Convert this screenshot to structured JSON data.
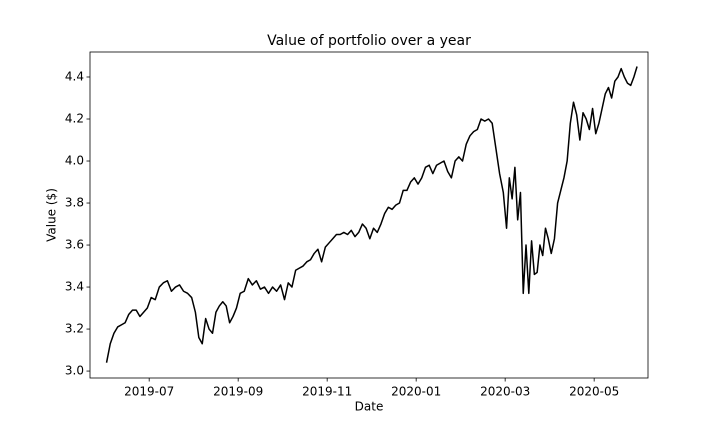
{
  "chart_data": {
    "type": "line",
    "title": "Value of portfolio over a year",
    "xlabel": "Date",
    "ylabel": "Value ($)",
    "color": "#000000",
    "x": [
      "2019-06",
      "2019-06",
      "2019-06",
      "2019-06",
      "2019-06",
      "2019-06",
      "2019-06",
      "2019-06",
      "2019-06",
      "2019-06",
      "2019-06",
      "2019-06",
      "2019-07",
      "2019-07",
      "2019-07",
      "2019-07",
      "2019-07",
      "2019-07",
      "2019-07",
      "2019-07",
      "2019-07",
      "2019-07",
      "2019-07",
      "2019-08",
      "2019-08",
      "2019-08",
      "2019-08",
      "2019-08",
      "2019-08",
      "2019-08",
      "2019-08",
      "2019-08",
      "2019-08",
      "2019-08",
      "2019-08",
      "2019-08",
      "2019-09",
      "2019-09",
      "2019-09",
      "2019-09",
      "2019-09",
      "2019-09",
      "2019-09",
      "2019-09",
      "2019-09",
      "2019-09",
      "2019-09",
      "2019-10",
      "2019-10",
      "2019-10",
      "2019-10",
      "2019-10",
      "2019-10",
      "2019-10",
      "2019-10",
      "2019-10",
      "2019-10",
      "2019-10",
      "2019-10",
      "2019-11",
      "2019-11",
      "2019-11",
      "2019-11",
      "2019-11",
      "2019-11",
      "2019-11",
      "2019-11",
      "2019-11",
      "2019-11",
      "2019-11",
      "2019-11",
      "2019-12",
      "2019-12",
      "2019-12",
      "2019-12",
      "2019-12",
      "2019-12",
      "2019-12",
      "2019-12",
      "2019-12",
      "2019-12",
      "2019-12",
      "2019-12",
      "2020-01",
      "2020-01",
      "2020-01",
      "2020-01",
      "2020-01",
      "2020-01",
      "2020-01",
      "2020-01",
      "2020-01",
      "2020-01",
      "2020-01",
      "2020-01",
      "2020-02",
      "2020-02",
      "2020-02",
      "2020-02",
      "2020-02",
      "2020-02",
      "2020-02",
      "2020-02",
      "2020-02",
      "2020-02",
      "2020-02",
      "2020-02",
      "2020-03",
      "2020-03",
      "2020-03",
      "2020-03",
      "2020-03",
      "2020-03",
      "2020-03",
      "2020-03",
      "2020-03",
      "2020-03",
      "2020-03",
      "2020-03",
      "2020-03",
      "2020-03",
      "2020-03",
      "2020-03",
      "2020-04",
      "2020-04",
      "2020-04",
      "2020-04",
      "2020-04",
      "2020-04",
      "2020-04",
      "2020-04",
      "2020-04",
      "2020-04",
      "2020-04",
      "2020-04",
      "2020-04",
      "2020-04",
      "2020-05",
      "2020-05",
      "2020-05",
      "2020-05",
      "2020-05",
      "2020-05",
      "2020-05",
      "2020-05",
      "2020-05",
      "2020-05",
      "2020-05",
      "2020-05",
      "2020-05",
      "2020-05"
    ],
    "values": [
      3.04,
      3.13,
      3.18,
      3.21,
      3.22,
      3.23,
      3.27,
      3.29,
      3.29,
      3.26,
      3.28,
      3.3,
      3.35,
      3.34,
      3.4,
      3.42,
      3.43,
      3.38,
      3.4,
      3.41,
      3.38,
      3.37,
      3.35,
      3.28,
      3.16,
      3.13,
      3.25,
      3.2,
      3.18,
      3.28,
      3.31,
      3.33,
      3.31,
      3.23,
      3.26,
      3.3,
      3.37,
      3.38,
      3.44,
      3.41,
      3.43,
      3.39,
      3.4,
      3.37,
      3.4,
      3.38,
      3.41,
      3.34,
      3.42,
      3.4,
      3.48,
      3.49,
      3.5,
      3.52,
      3.53,
      3.56,
      3.58,
      3.52,
      3.59,
      3.61,
      3.63,
      3.65,
      3.65,
      3.66,
      3.65,
      3.67,
      3.64,
      3.66,
      3.7,
      3.68,
      3.63,
      3.68,
      3.66,
      3.7,
      3.75,
      3.78,
      3.77,
      3.79,
      3.8,
      3.86,
      3.86,
      3.9,
      3.92,
      3.89,
      3.92,
      3.97,
      3.98,
      3.94,
      3.98,
      3.99,
      4.0,
      3.95,
      3.92,
      4.0,
      4.02,
      4.0,
      4.08,
      4.12,
      4.14,
      4.15,
      4.2,
      4.19,
      4.2,
      4.18,
      4.06,
      3.94,
      3.85,
      3.68,
      3.92,
      3.82,
      3.97,
      3.72,
      3.85,
      3.37,
      3.6,
      3.37,
      3.62,
      3.46,
      3.47,
      3.6,
      3.55,
      3.68,
      3.63,
      3.56,
      3.63,
      3.8,
      3.86,
      3.92,
      4.0,
      4.18,
      4.28,
      4.22,
      4.1,
      4.23,
      4.2,
      4.15,
      4.25,
      4.13,
      4.18,
      4.25,
      4.32,
      4.35,
      4.3,
      4.38,
      4.4,
      4.44,
      4.4,
      4.37,
      4.36,
      4.4,
      4.45
    ],
    "xlim": [
      "2019-06",
      "2020-06"
    ],
    "xticks": [
      "2019-07",
      "2019-09",
      "2019-11",
      "2020-01",
      "2020-03",
      "2020-05"
    ],
    "ylim": [
      2.967,
      4.519
    ],
    "yticks": [
      {
        "value": 3,
        "label": "3.0"
      },
      {
        "value": 3.2,
        "label": "3.2"
      },
      {
        "value": 3.4,
        "label": "3.4"
      },
      {
        "value": 3.6,
        "label": "3.6"
      },
      {
        "value": 3.8,
        "label": "3.8"
      },
      {
        "value": 4,
        "label": "4.0"
      },
      {
        "value": 4.2,
        "label": "4.2"
      },
      {
        "value": 4.4,
        "label": "4.4"
      }
    ]
  }
}
